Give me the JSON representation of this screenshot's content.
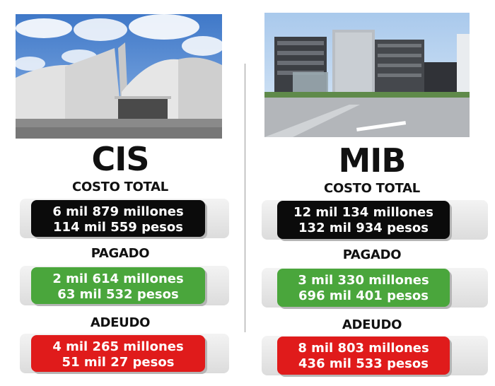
{
  "colors": {
    "black": "#0b0b0b",
    "green": "#4aa63c",
    "red": "#e01b1b"
  },
  "left": {
    "title": "CIS",
    "costo_total_label": "COSTO TOTAL",
    "costo_total": [
      "6 mil 879 millones",
      "114 mil 559 pesos"
    ],
    "pagado_label": "PAGADO",
    "pagado": [
      "2 mil 614 millones",
      "63 mil 532 pesos"
    ],
    "adeudo_label": "ADEUDO",
    "adeudo": [
      "4 mil 265 millones",
      "51 mil 27 pesos"
    ]
  },
  "right": {
    "title": "MIB",
    "costo_total_label": "COSTO TOTAL",
    "costo_total": [
      "12 mil 134 millones",
      "132 mil 934 pesos"
    ],
    "pagado_label": "PAGADO",
    "pagado": [
      "3 mil 330 millones",
      "696 mil 401 pesos"
    ],
    "adeudo_label": "ADEUDO",
    "adeudo": [
      "8 mil 803 millones",
      "436 mil 533 pesos"
    ]
  }
}
